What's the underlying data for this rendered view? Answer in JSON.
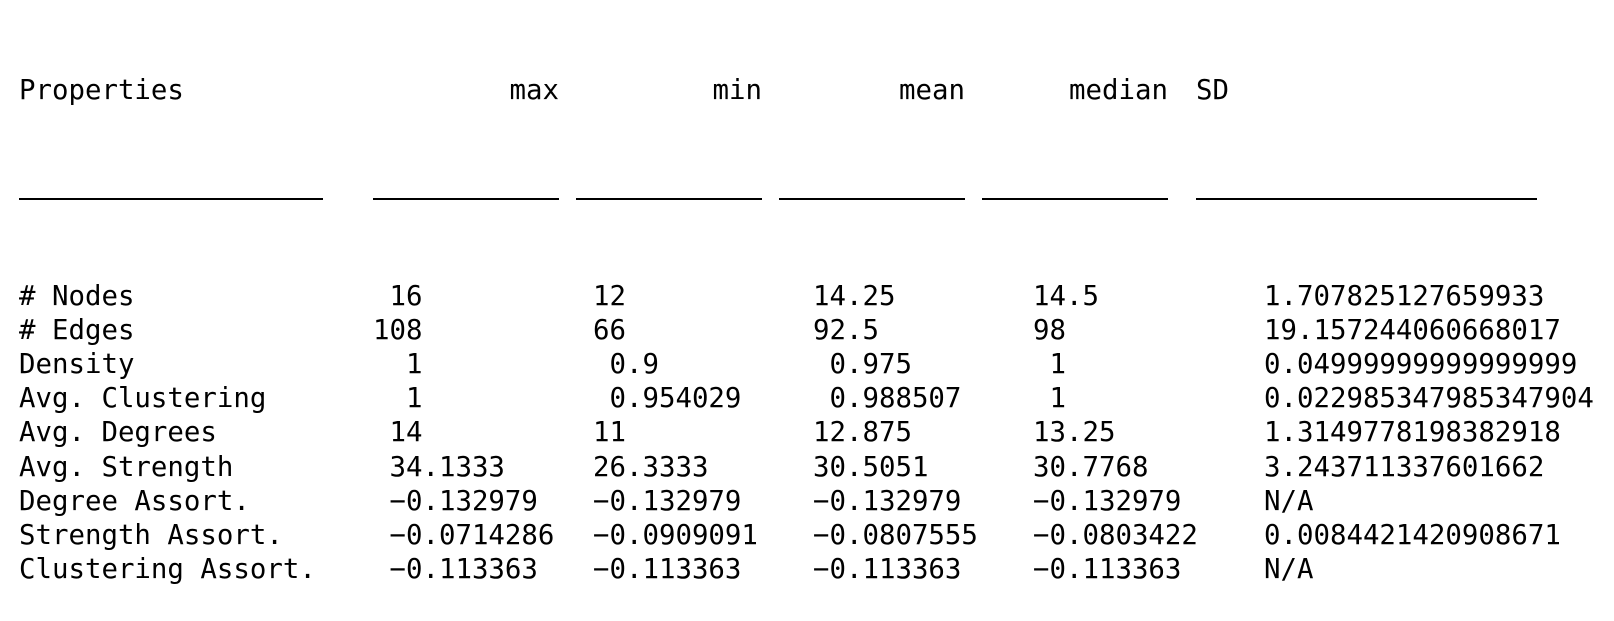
{
  "table": {
    "headers": [
      "Properties",
      "max",
      "min",
      "mean",
      "median",
      "SD"
    ],
    "rows": [
      {
        "label": "# Nodes",
        "max": " 16",
        "min": "12",
        "mean": "14.25",
        "median": "14.5",
        "sd": "1.707825127659933"
      },
      {
        "label": "# Edges",
        "max": "108",
        "min": "66",
        "mean": "92.5",
        "median": "98",
        "sd": "19.157244060668017"
      },
      {
        "label": "Density",
        "max": "  1",
        "min": " 0.9",
        "mean": " 0.975",
        "median": " 1",
        "sd": "0.04999999999999999"
      },
      {
        "label": "Avg. Clustering",
        "max": "  1",
        "min": " 0.954029",
        "mean": " 0.988507",
        "median": " 1",
        "sd": "0.022985347985347904"
      },
      {
        "label": "Avg. Degrees",
        "max": " 14",
        "min": "11",
        "mean": "12.875",
        "median": "13.25",
        "sd": "1.3149778198382918"
      },
      {
        "label": "Avg. Strength",
        "max": " 34.1333",
        "min": "26.3333",
        "mean": "30.5051",
        "median": "30.7768",
        "sd": "3.243711337601662"
      },
      {
        "label": "Degree Assort.",
        "max": " −0.132979",
        "min": "−0.132979",
        "mean": "−0.132979",
        "median": "−0.132979",
        "sd": "N/A"
      },
      {
        "label": "Strength Assort.",
        "max": " −0.0714286",
        "min": "−0.0909091",
        "mean": "−0.0807555",
        "median": "−0.0803422",
        "sd": "0.0084421420908671"
      },
      {
        "label": "Clustering Assort.",
        "max": " −0.113363",
        "min": "−0.113363",
        "mean": "−0.113363",
        "median": "−0.113363",
        "sd": "N/A"
      }
    ]
  }
}
